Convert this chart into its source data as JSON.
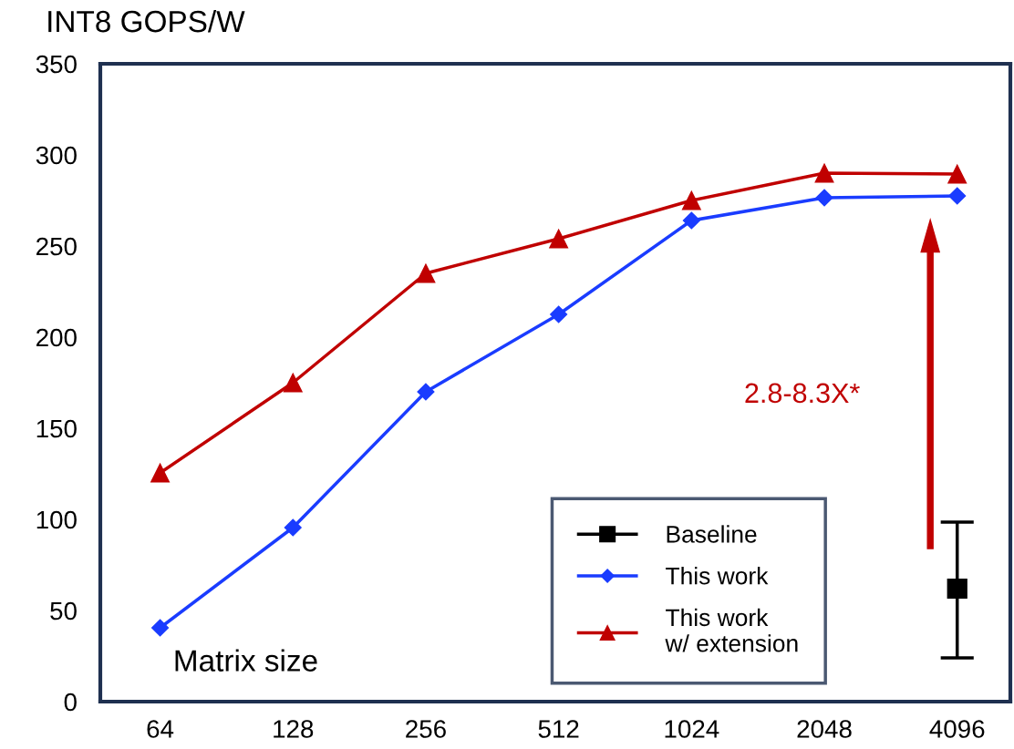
{
  "chart_data": {
    "type": "line",
    "ylabel": "INT8 GOPS/W",
    "xlabel": "Matrix size",
    "categories": [
      "64",
      "128",
      "256",
      "512",
      "1024",
      "2048",
      "4096"
    ],
    "series": [
      {
        "name": "Baseline",
        "type": "scatter",
        "color": "#000000",
        "marker": "square",
        "values": [
          null,
          null,
          null,
          null,
          null,
          null,
          62
        ],
        "errors": [
          null,
          null,
          null,
          null,
          null,
          null,
          [
            24,
            98.5
          ]
        ]
      },
      {
        "name": "This work",
        "color": "#1a3cff",
        "marker": "diamond",
        "values": [
          40.5,
          95.5,
          170,
          212.5,
          264,
          276.5,
          277.5
        ]
      },
      {
        "name": "This work\nw/ extension",
        "color": "#c00000",
        "marker": "triangle",
        "values": [
          125.5,
          175,
          235,
          254,
          275,
          290,
          289.5
        ]
      }
    ],
    "ylim": [
      0,
      350
    ],
    "yticks": [
      0,
      50,
      100,
      150,
      200,
      250,
      300,
      350
    ],
    "annotations": [
      "2.8-8.3X*"
    ],
    "grid": false,
    "legend": "bottom right",
    "line_style": "solid"
  }
}
